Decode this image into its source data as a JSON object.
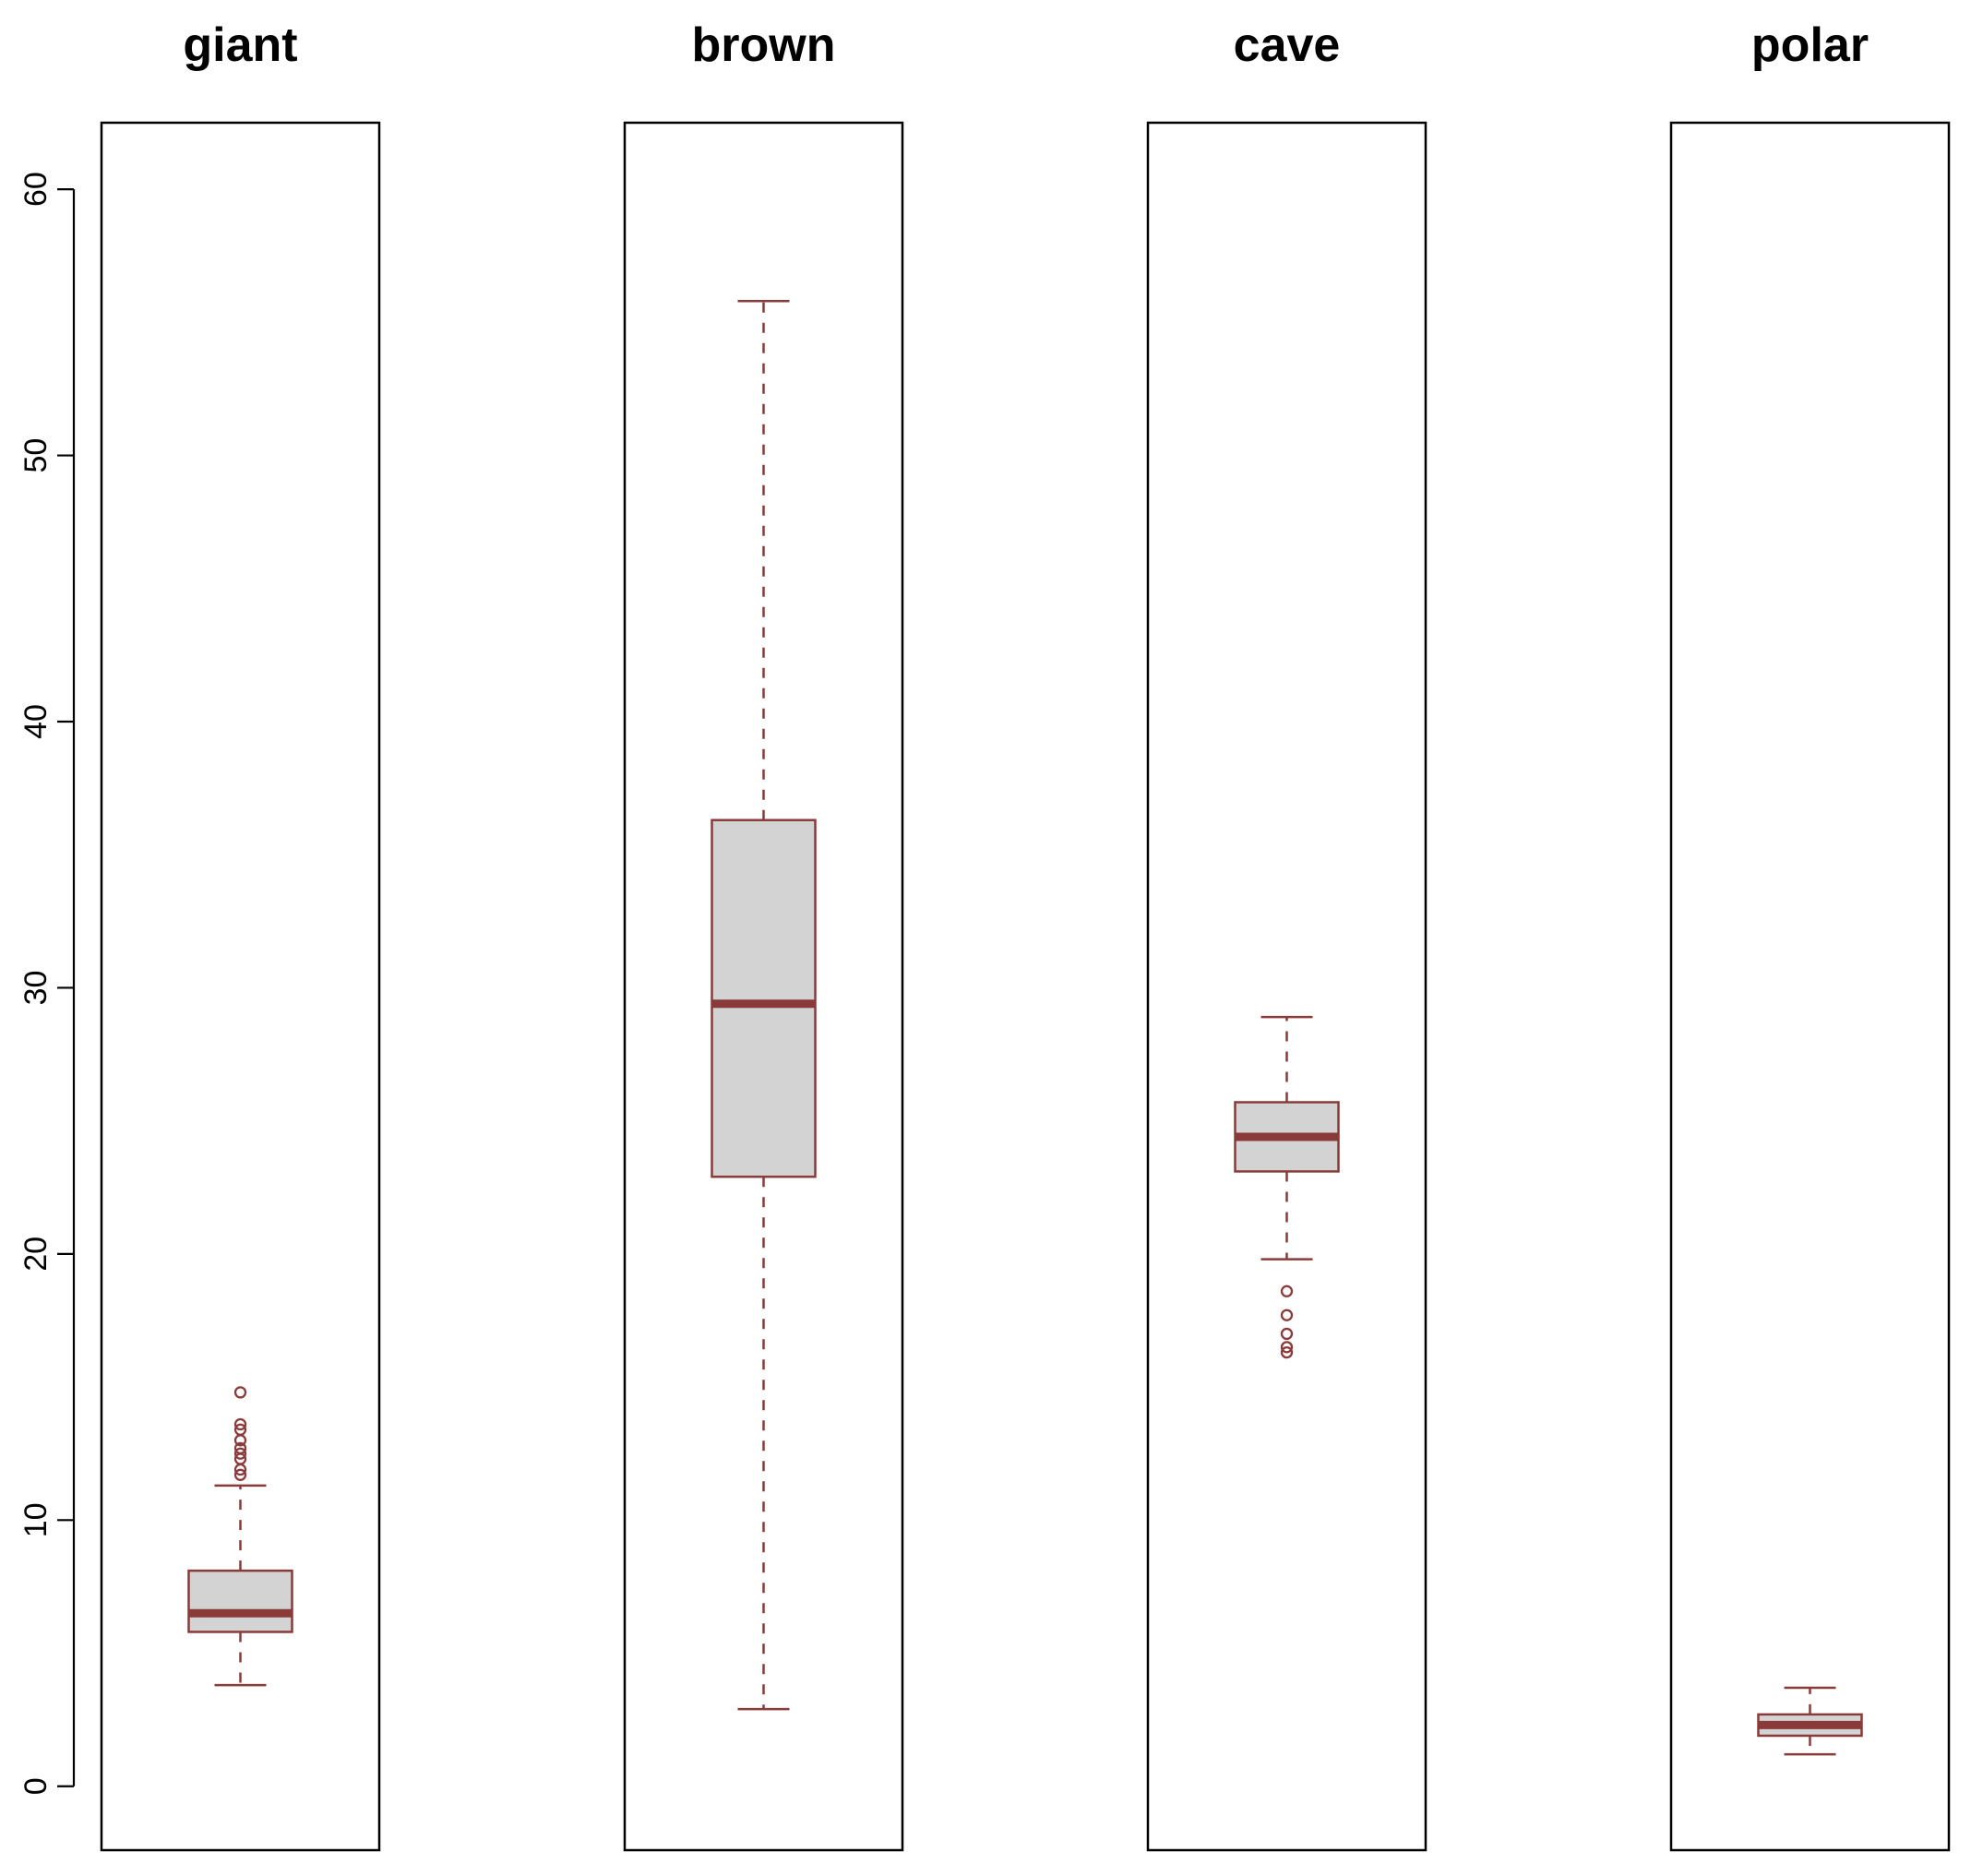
{
  "chart_data": {
    "type": "boxplot",
    "title": "",
    "xlabel": "",
    "ylabel": "",
    "ylim": [
      -2.4,
      62.5
    ],
    "yticks": [
      0,
      10,
      20,
      30,
      40,
      50,
      60
    ],
    "grid": false,
    "legend": "none",
    "colors": {
      "box_fill": "#d3d3d3",
      "box_stroke": "#8b3a3a",
      "frame": "#000000"
    },
    "panels": [
      {
        "name": "giant",
        "whisker_low": 3.8,
        "q1": 5.8,
        "median": 6.5,
        "q3": 8.1,
        "whisker_high": 11.3,
        "outliers": [
          11.7,
          11.9,
          12.3,
          12.5,
          12.7,
          13.0,
          13.4,
          13.6,
          14.8
        ]
      },
      {
        "name": "brown",
        "whisker_low": 2.9,
        "q1": 22.9,
        "median": 29.4,
        "q3": 36.3,
        "whisker_high": 55.8,
        "outliers": []
      },
      {
        "name": "cave",
        "whisker_low": 19.8,
        "q1": 23.1,
        "median": 24.4,
        "q3": 25.7,
        "whisker_high": 28.9,
        "outliers": [
          16.3,
          16.5,
          17.0,
          17.7,
          18.6
        ]
      },
      {
        "name": "polar",
        "whisker_low": 1.2,
        "q1": 1.9,
        "median": 2.3,
        "q3": 2.7,
        "whisker_high": 3.7,
        "outliers": []
      }
    ]
  }
}
